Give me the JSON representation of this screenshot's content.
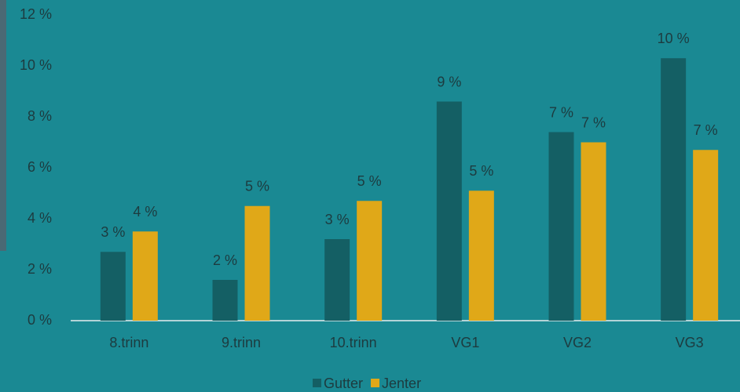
{
  "chart_data": {
    "type": "bar",
    "categories": [
      "8.trinn",
      "9.trinn",
      "10.trinn",
      "VG1",
      "VG2",
      "VG3"
    ],
    "series": [
      {
        "name": "Gutter",
        "color": "#145f64",
        "values": [
          2.7,
          1.6,
          3.2,
          8.6,
          7.4,
          10.3
        ],
        "value_labels": [
          "3 %",
          "2 %",
          "3 %",
          "9 %",
          "7 %",
          "10 %"
        ]
      },
      {
        "name": "Jenter",
        "color": "#e0a818",
        "values": [
          3.5,
          4.5,
          4.7,
          5.1,
          7.0,
          6.7
        ],
        "value_labels": [
          "4 %",
          "5 %",
          "5 %",
          "5 %",
          "7 %",
          "7 %"
        ]
      }
    ],
    "ylim": [
      0,
      12
    ],
    "yticks": [
      {
        "value": 0,
        "label": "0 %"
      },
      {
        "value": 2,
        "label": "2 %"
      },
      {
        "value": 4,
        "label": "4 %"
      },
      {
        "value": 6,
        "label": "6 %"
      },
      {
        "value": 8,
        "label": "8 %"
      },
      {
        "value": 10,
        "label": "10 %"
      },
      {
        "value": 12,
        "label": "12 %"
      }
    ],
    "grid": false,
    "legend": "bottom"
  }
}
